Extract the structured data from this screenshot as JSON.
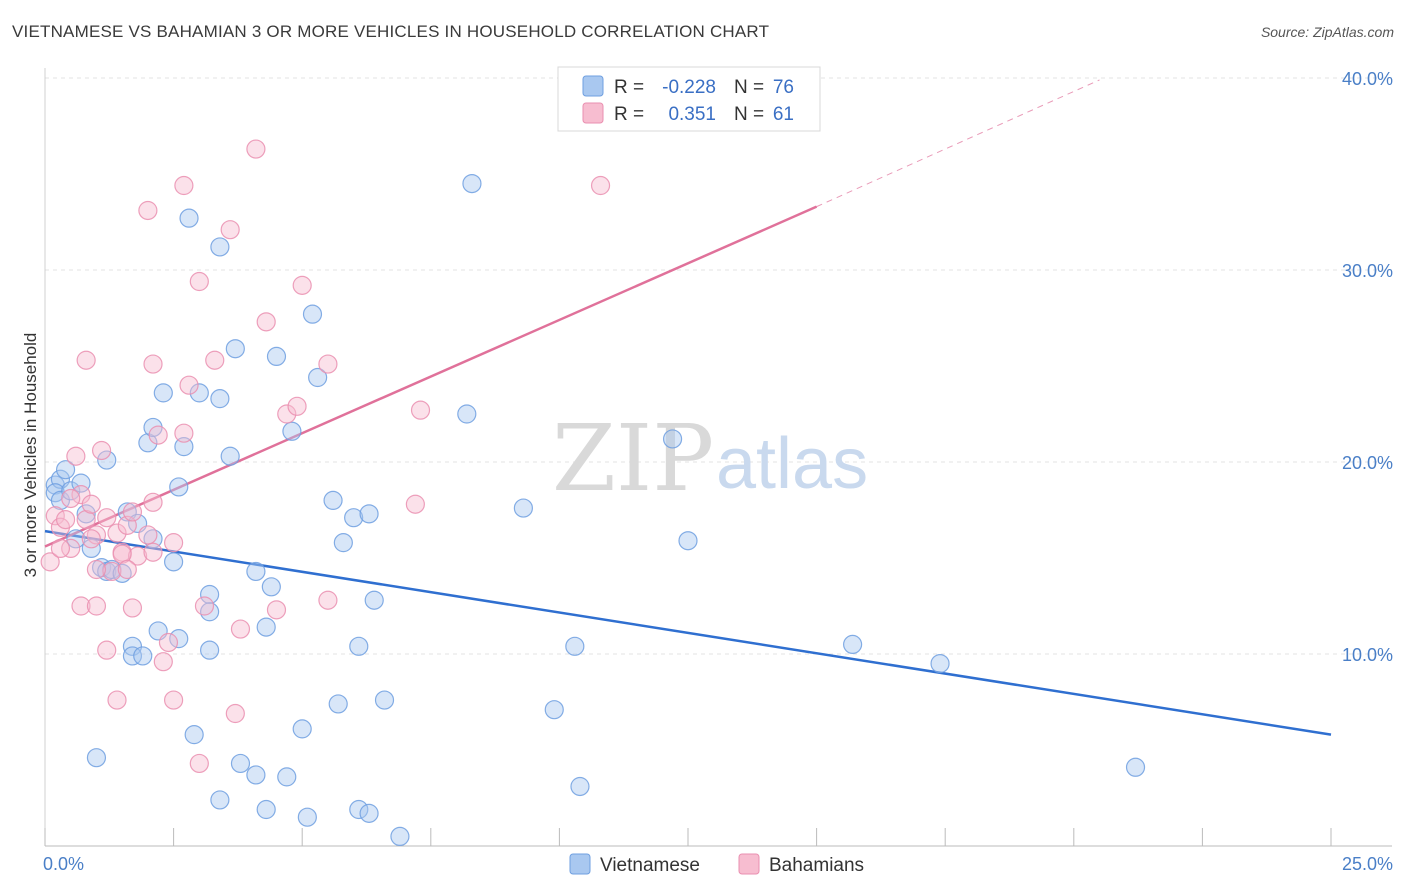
{
  "title": "VIETNAMESE VS BAHAMIAN 3 OR MORE VEHICLES IN HOUSEHOLD CORRELATION CHART",
  "source": "Source: ZipAtlas.com",
  "watermark": {
    "zip": "ZIP",
    "atlas": "atlas"
  },
  "legend": {
    "r_label": "R =",
    "n_label": "N =",
    "entries": [
      {
        "r": "-0.228",
        "n": "76",
        "color": "#a9c8f0",
        "stroke": "#6f9fe0"
      },
      {
        "r": "0.351",
        "n": "61",
        "color": "#f7bdd0",
        "stroke": "#ea8fb0"
      }
    ]
  },
  "bottom_legend": [
    "Vietnamese",
    "Bahamians"
  ],
  "chart_data": {
    "type": "scatter",
    "ylabel": "3 or more Vehicles in Household",
    "xlim": [
      0,
      25
    ],
    "ylim": [
      0,
      40
    ],
    "x_tick_labels": [
      "0.0%",
      "25.0%"
    ],
    "y_tick_labels": [
      "10.0%",
      "20.0%",
      "30.0%",
      "40.0%"
    ],
    "y_ticks": [
      10,
      20,
      30,
      40
    ],
    "grid": true,
    "series": [
      {
        "name": "Vietnamese",
        "color": "#a9c8f0",
        "stroke": "#6f9fe0",
        "line_color": "#2f6fd0",
        "trend": {
          "x0": 0,
          "y0": 16.4,
          "x1": 25,
          "y1": 5.8,
          "dashed_to": null
        },
        "points": [
          [
            0.2,
            18.8
          ],
          [
            0.3,
            19.1
          ],
          [
            0.4,
            19.6
          ],
          [
            0.2,
            18.4
          ],
          [
            0.3,
            18.0
          ],
          [
            0.5,
            18.5
          ],
          [
            0.7,
            18.9
          ],
          [
            0.8,
            17.3
          ],
          [
            0.6,
            16.0
          ],
          [
            0.9,
            15.5
          ],
          [
            1.1,
            14.5
          ],
          [
            1.2,
            14.3
          ],
          [
            1.3,
            14.4
          ],
          [
            1.5,
            14.2
          ],
          [
            1.6,
            17.4
          ],
          [
            1.8,
            16.8
          ],
          [
            2.1,
            16.0
          ],
          [
            2.5,
            14.8
          ],
          [
            1.2,
            20.1
          ],
          [
            2.0,
            21.0
          ],
          [
            2.1,
            21.8
          ],
          [
            2.3,
            23.6
          ],
          [
            2.7,
            20.8
          ],
          [
            2.6,
            18.7
          ],
          [
            3.0,
            23.6
          ],
          [
            3.4,
            23.3
          ],
          [
            3.6,
            20.3
          ],
          [
            3.7,
            25.9
          ],
          [
            2.8,
            32.7
          ],
          [
            3.4,
            31.2
          ],
          [
            4.5,
            25.5
          ],
          [
            4.8,
            21.6
          ],
          [
            5.2,
            27.7
          ],
          [
            5.3,
            24.4
          ],
          [
            4.1,
            14.3
          ],
          [
            4.4,
            13.5
          ],
          [
            3.2,
            13.1
          ],
          [
            3.2,
            12.2
          ],
          [
            5.8,
            15.8
          ],
          [
            6.0,
            17.1
          ],
          [
            6.3,
            17.3
          ],
          [
            6.4,
            12.8
          ],
          [
            4.3,
            11.4
          ],
          [
            2.2,
            11.2
          ],
          [
            2.6,
            10.8
          ],
          [
            1.7,
            10.4
          ],
          [
            1.7,
            9.9
          ],
          [
            1.9,
            9.9
          ],
          [
            3.2,
            10.2
          ],
          [
            6.1,
            10.4
          ],
          [
            5.7,
            7.4
          ],
          [
            6.6,
            7.6
          ],
          [
            5.0,
            6.1
          ],
          [
            2.9,
            5.8
          ],
          [
            1.0,
            4.6
          ],
          [
            3.8,
            4.3
          ],
          [
            4.1,
            3.7
          ],
          [
            4.7,
            3.6
          ],
          [
            3.4,
            2.4
          ],
          [
            4.3,
            1.9
          ],
          [
            5.1,
            1.5
          ],
          [
            6.1,
            1.9
          ],
          [
            6.3,
            1.7
          ],
          [
            6.9,
            0.5
          ],
          [
            8.3,
            34.5
          ],
          [
            8.2,
            22.5
          ],
          [
            9.3,
            17.6
          ],
          [
            9.9,
            7.1
          ],
          [
            10.3,
            10.4
          ],
          [
            10.4,
            3.1
          ],
          [
            12.2,
            21.2
          ],
          [
            12.5,
            15.9
          ],
          [
            15.7,
            10.5
          ],
          [
            17.4,
            9.5
          ],
          [
            21.2,
            4.1
          ],
          [
            5.6,
            18.0
          ]
        ]
      },
      {
        "name": "Bahamians",
        "color": "#f7bdd0",
        "stroke": "#ea8fb0",
        "line_color": "#e0719a",
        "trend": {
          "x0": 0,
          "y0": 15.6,
          "x1": 15,
          "y1": 33.3,
          "dashed_to": [
            20.5,
            39.9
          ]
        },
        "points": [
          [
            0.1,
            14.8
          ],
          [
            0.2,
            17.2
          ],
          [
            0.3,
            16.6
          ],
          [
            0.4,
            17.0
          ],
          [
            0.5,
            15.5
          ],
          [
            0.6,
            20.3
          ],
          [
            0.7,
            18.3
          ],
          [
            0.8,
            17.0
          ],
          [
            0.9,
            17.8
          ],
          [
            1.0,
            16.2
          ],
          [
            1.1,
            20.6
          ],
          [
            1.2,
            17.1
          ],
          [
            1.3,
            14.3
          ],
          [
            1.4,
            16.3
          ],
          [
            1.5,
            15.3
          ],
          [
            1.6,
            16.7
          ],
          [
            1.7,
            17.4
          ],
          [
            1.8,
            15.1
          ],
          [
            2.0,
            16.2
          ],
          [
            2.1,
            15.3
          ],
          [
            2.1,
            17.9
          ],
          [
            2.2,
            21.4
          ],
          [
            0.8,
            25.3
          ],
          [
            0.7,
            12.5
          ],
          [
            1.2,
            10.2
          ],
          [
            1.4,
            7.6
          ],
          [
            1.7,
            12.4
          ],
          [
            2.4,
            10.6
          ],
          [
            2.3,
            9.6
          ],
          [
            2.5,
            7.6
          ],
          [
            2.5,
            15.8
          ],
          [
            2.7,
            21.5
          ],
          [
            2.7,
            34.4
          ],
          [
            2.8,
            24.0
          ],
          [
            3.0,
            29.4
          ],
          [
            3.1,
            12.5
          ],
          [
            3.3,
            25.3
          ],
          [
            3.6,
            32.1
          ],
          [
            3.8,
            11.3
          ],
          [
            3.7,
            6.9
          ],
          [
            4.1,
            36.3
          ],
          [
            4.3,
            27.3
          ],
          [
            4.5,
            12.3
          ],
          [
            4.7,
            22.5
          ],
          [
            4.9,
            22.9
          ],
          [
            5.0,
            29.2
          ],
          [
            5.5,
            25.1
          ],
          [
            5.5,
            12.8
          ],
          [
            2.1,
            25.1
          ],
          [
            2.0,
            33.1
          ],
          [
            1.0,
            14.4
          ],
          [
            0.5,
            18.1
          ],
          [
            1.0,
            12.5
          ],
          [
            3.0,
            4.3
          ],
          [
            7.2,
            17.8
          ],
          [
            7.3,
            22.7
          ],
          [
            10.8,
            34.4
          ],
          [
            0.9,
            16.0
          ],
          [
            1.5,
            15.2
          ],
          [
            0.3,
            15.5
          ],
          [
            1.6,
            14.4
          ]
        ]
      }
    ]
  }
}
